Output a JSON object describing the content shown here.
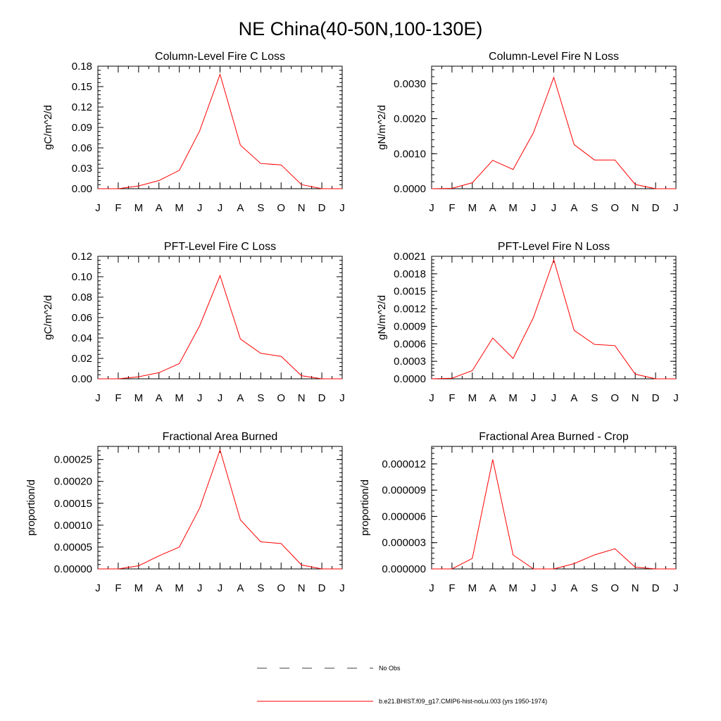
{
  "main_title": "NE China(40-50N,100-130E)",
  "legend": {
    "entries": [
      {
        "label": "No Obs",
        "style": "dashed",
        "color": "#000000"
      },
      {
        "label": "b.e21.BHIST.f09_g17.CMIP6-hist-noLu.003 (yrs 1950-1974)",
        "style": "solid",
        "color": "#ff0000"
      }
    ]
  },
  "colors": {
    "model_line": "#ff0000",
    "axes": "#000000"
  },
  "chart_data": [
    {
      "type": "line",
      "title": "Column-Level Fire C Loss",
      "ylabel": "gC/m^2/d",
      "xlabel": "",
      "categories": [
        "J",
        "F",
        "M",
        "A",
        "M",
        "J",
        "J",
        "A",
        "S",
        "O",
        "N",
        "D",
        "J"
      ],
      "ylim": [
        0,
        0.18
      ],
      "yticks": [
        "0.00",
        "0.03",
        "0.06",
        "0.09",
        "0.12",
        "0.15",
        "0.18"
      ],
      "grid": false,
      "series": [
        {
          "values": [
            0.0,
            0.0,
            0.004,
            0.012,
            0.027,
            0.085,
            0.168,
            0.064,
            0.037,
            0.035,
            0.006,
            0.0,
            0.0
          ]
        }
      ]
    },
    {
      "type": "line",
      "title": "Column-Level Fire N Loss",
      "ylabel": "gN/m^2/d",
      "xlabel": "",
      "categories": [
        "J",
        "F",
        "M",
        "A",
        "M",
        "J",
        "J",
        "A",
        "S",
        "O",
        "N",
        "D",
        "J"
      ],
      "ylim": [
        0,
        0.0035
      ],
      "yticks": [
        "0.0000",
        "0.0010",
        "0.0020",
        "0.0030"
      ],
      "grid": false,
      "series": [
        {
          "values": [
            0.0,
            1e-05,
            0.00017,
            0.00081,
            0.00055,
            0.0016,
            0.00318,
            0.00126,
            0.00082,
            0.00082,
            0.00012,
            0.0,
            0.0
          ]
        }
      ]
    },
    {
      "type": "line",
      "title": "PFT-Level Fire C Loss",
      "ylabel": "gC/m^2/d",
      "xlabel": "",
      "categories": [
        "J",
        "F",
        "M",
        "A",
        "M",
        "J",
        "J",
        "A",
        "S",
        "O",
        "N",
        "D",
        "J"
      ],
      "ylim": [
        0,
        0.12
      ],
      "yticks": [
        "0.00",
        "0.02",
        "0.04",
        "0.06",
        "0.08",
        "0.10",
        "0.12"
      ],
      "grid": false,
      "series": [
        {
          "values": [
            0.0,
            0.0,
            0.002,
            0.006,
            0.015,
            0.052,
            0.101,
            0.039,
            0.025,
            0.022,
            0.003,
            0.0,
            0.0
          ]
        }
      ]
    },
    {
      "type": "line",
      "title": "PFT-Level Fire N Loss",
      "ylabel": "gN/m^2/d",
      "xlabel": "",
      "categories": [
        "J",
        "F",
        "M",
        "A",
        "M",
        "J",
        "J",
        "A",
        "S",
        "O",
        "N",
        "D",
        "J"
      ],
      "ylim": [
        0,
        0.0021
      ],
      "yticks": [
        "0.0000",
        "0.0003",
        "0.0006",
        "0.0009",
        "0.0012",
        "0.0015",
        "0.0018",
        "0.0021"
      ],
      "grid": false,
      "series": [
        {
          "values": [
            0.0,
            1e-05,
            0.00014,
            0.0007,
            0.00035,
            0.00105,
            0.00204,
            0.00083,
            0.00059,
            0.00057,
            8e-05,
            0.0,
            0.0
          ]
        }
      ]
    },
    {
      "type": "line",
      "title": "Fractional Area Burned",
      "ylabel": "proportion/d",
      "xlabel": "",
      "categories": [
        "J",
        "F",
        "M",
        "A",
        "M",
        "J",
        "J",
        "A",
        "S",
        "O",
        "N",
        "D",
        "J"
      ],
      "ylim": [
        0,
        0.00028
      ],
      "yticks": [
        "0.00000",
        "0.00005",
        "0.00010",
        "0.00015",
        "0.00020",
        "0.00025"
      ],
      "grid": false,
      "series": [
        {
          "values": [
            0.0,
            0.0,
            7e-06,
            3e-05,
            5e-05,
            0.000139,
            0.000272,
            0.000112,
            6.2e-05,
            5.8e-05,
            9e-06,
            0.0,
            0.0
          ]
        }
      ]
    },
    {
      "type": "line",
      "title": "Fractional Area Burned - Crop",
      "ylabel": "proportion/d",
      "xlabel": "",
      "categories": [
        "J",
        "F",
        "M",
        "A",
        "M",
        "J",
        "J",
        "A",
        "S",
        "O",
        "N",
        "D",
        "J"
      ],
      "ylim": [
        0,
        1.4e-05
      ],
      "yticks": [
        "0.000000",
        "0.000003",
        "0.000006",
        "0.000009",
        "0.000012"
      ],
      "grid": false,
      "series": [
        {
          "values": [
            0.0,
            0.0,
            1.2e-06,
            1.25e-05,
            1.6e-06,
            0.0,
            0.0,
            6e-07,
            1.6e-06,
            2.3e-06,
            2e-07,
            0.0,
            0.0
          ]
        }
      ]
    }
  ]
}
